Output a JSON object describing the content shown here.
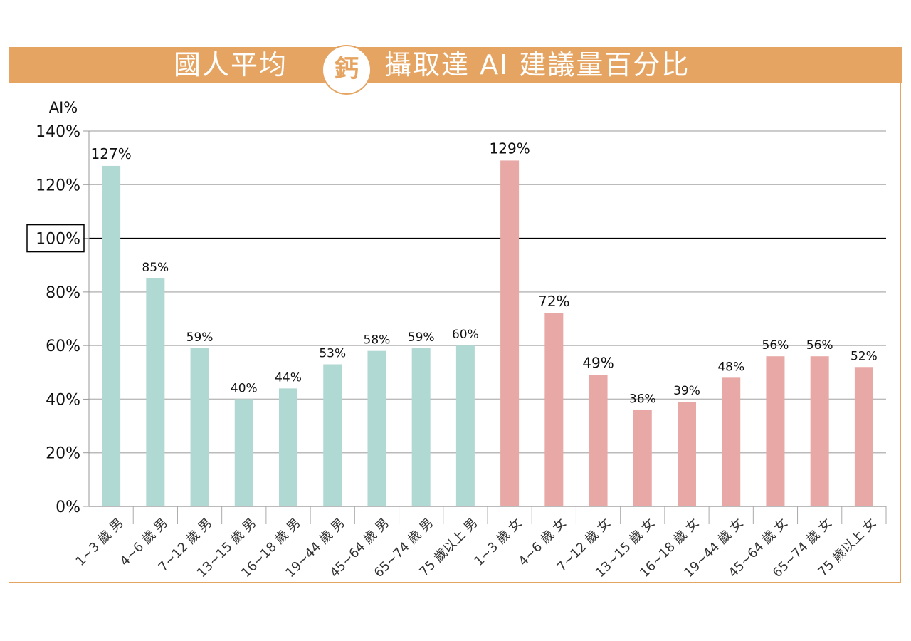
{
  "title": {
    "part1": "國人平均",
    "badge": "鈣",
    "part2": "攝取達 AI 建議量百分比"
  },
  "chart_data": {
    "type": "bar",
    "title": "國人平均鈣攝取達 AI 建議量百分比",
    "ylabel": "AI%",
    "xlabel": "",
    "ylim": [
      0,
      140
    ],
    "yticks": [
      "0%",
      "20%",
      "40%",
      "60%",
      "80%",
      "100%",
      "120%",
      "140%"
    ],
    "reference_line": {
      "value": 100,
      "label": "100%"
    },
    "grid": true,
    "categories": [
      "1~3 歲 男",
      "4~6 歲 男",
      "7~12 歲 男",
      "13~15 歲 男",
      "16~18 歲 男",
      "19~44 歲 男",
      "45~64 歲 男",
      "65~74 歲 男",
      "75 歲以上 男",
      "1~3 歲 女",
      "4~6 歲 女",
      "7~12 歲 女",
      "13~15 歲 女",
      "16~18 歲 女",
      "19~44 歲 女",
      "45~64 歲 女",
      "65~74 歲 女",
      "75 歲以上 女"
    ],
    "values": [
      127,
      85,
      59,
      40,
      44,
      53,
      58,
      59,
      60,
      129,
      72,
      49,
      36,
      39,
      48,
      56,
      56,
      52
    ],
    "labels": [
      "127%",
      "85%",
      "59%",
      "40%",
      "44%",
      "53%",
      "58%",
      "59%",
      "60%",
      "129%",
      "72%",
      "49%",
      "36%",
      "39%",
      "48%",
      "56%",
      "56%",
      "52%"
    ],
    "colors": {
      "male": "#B0D9D3",
      "female": "#E8A8A5"
    }
  }
}
